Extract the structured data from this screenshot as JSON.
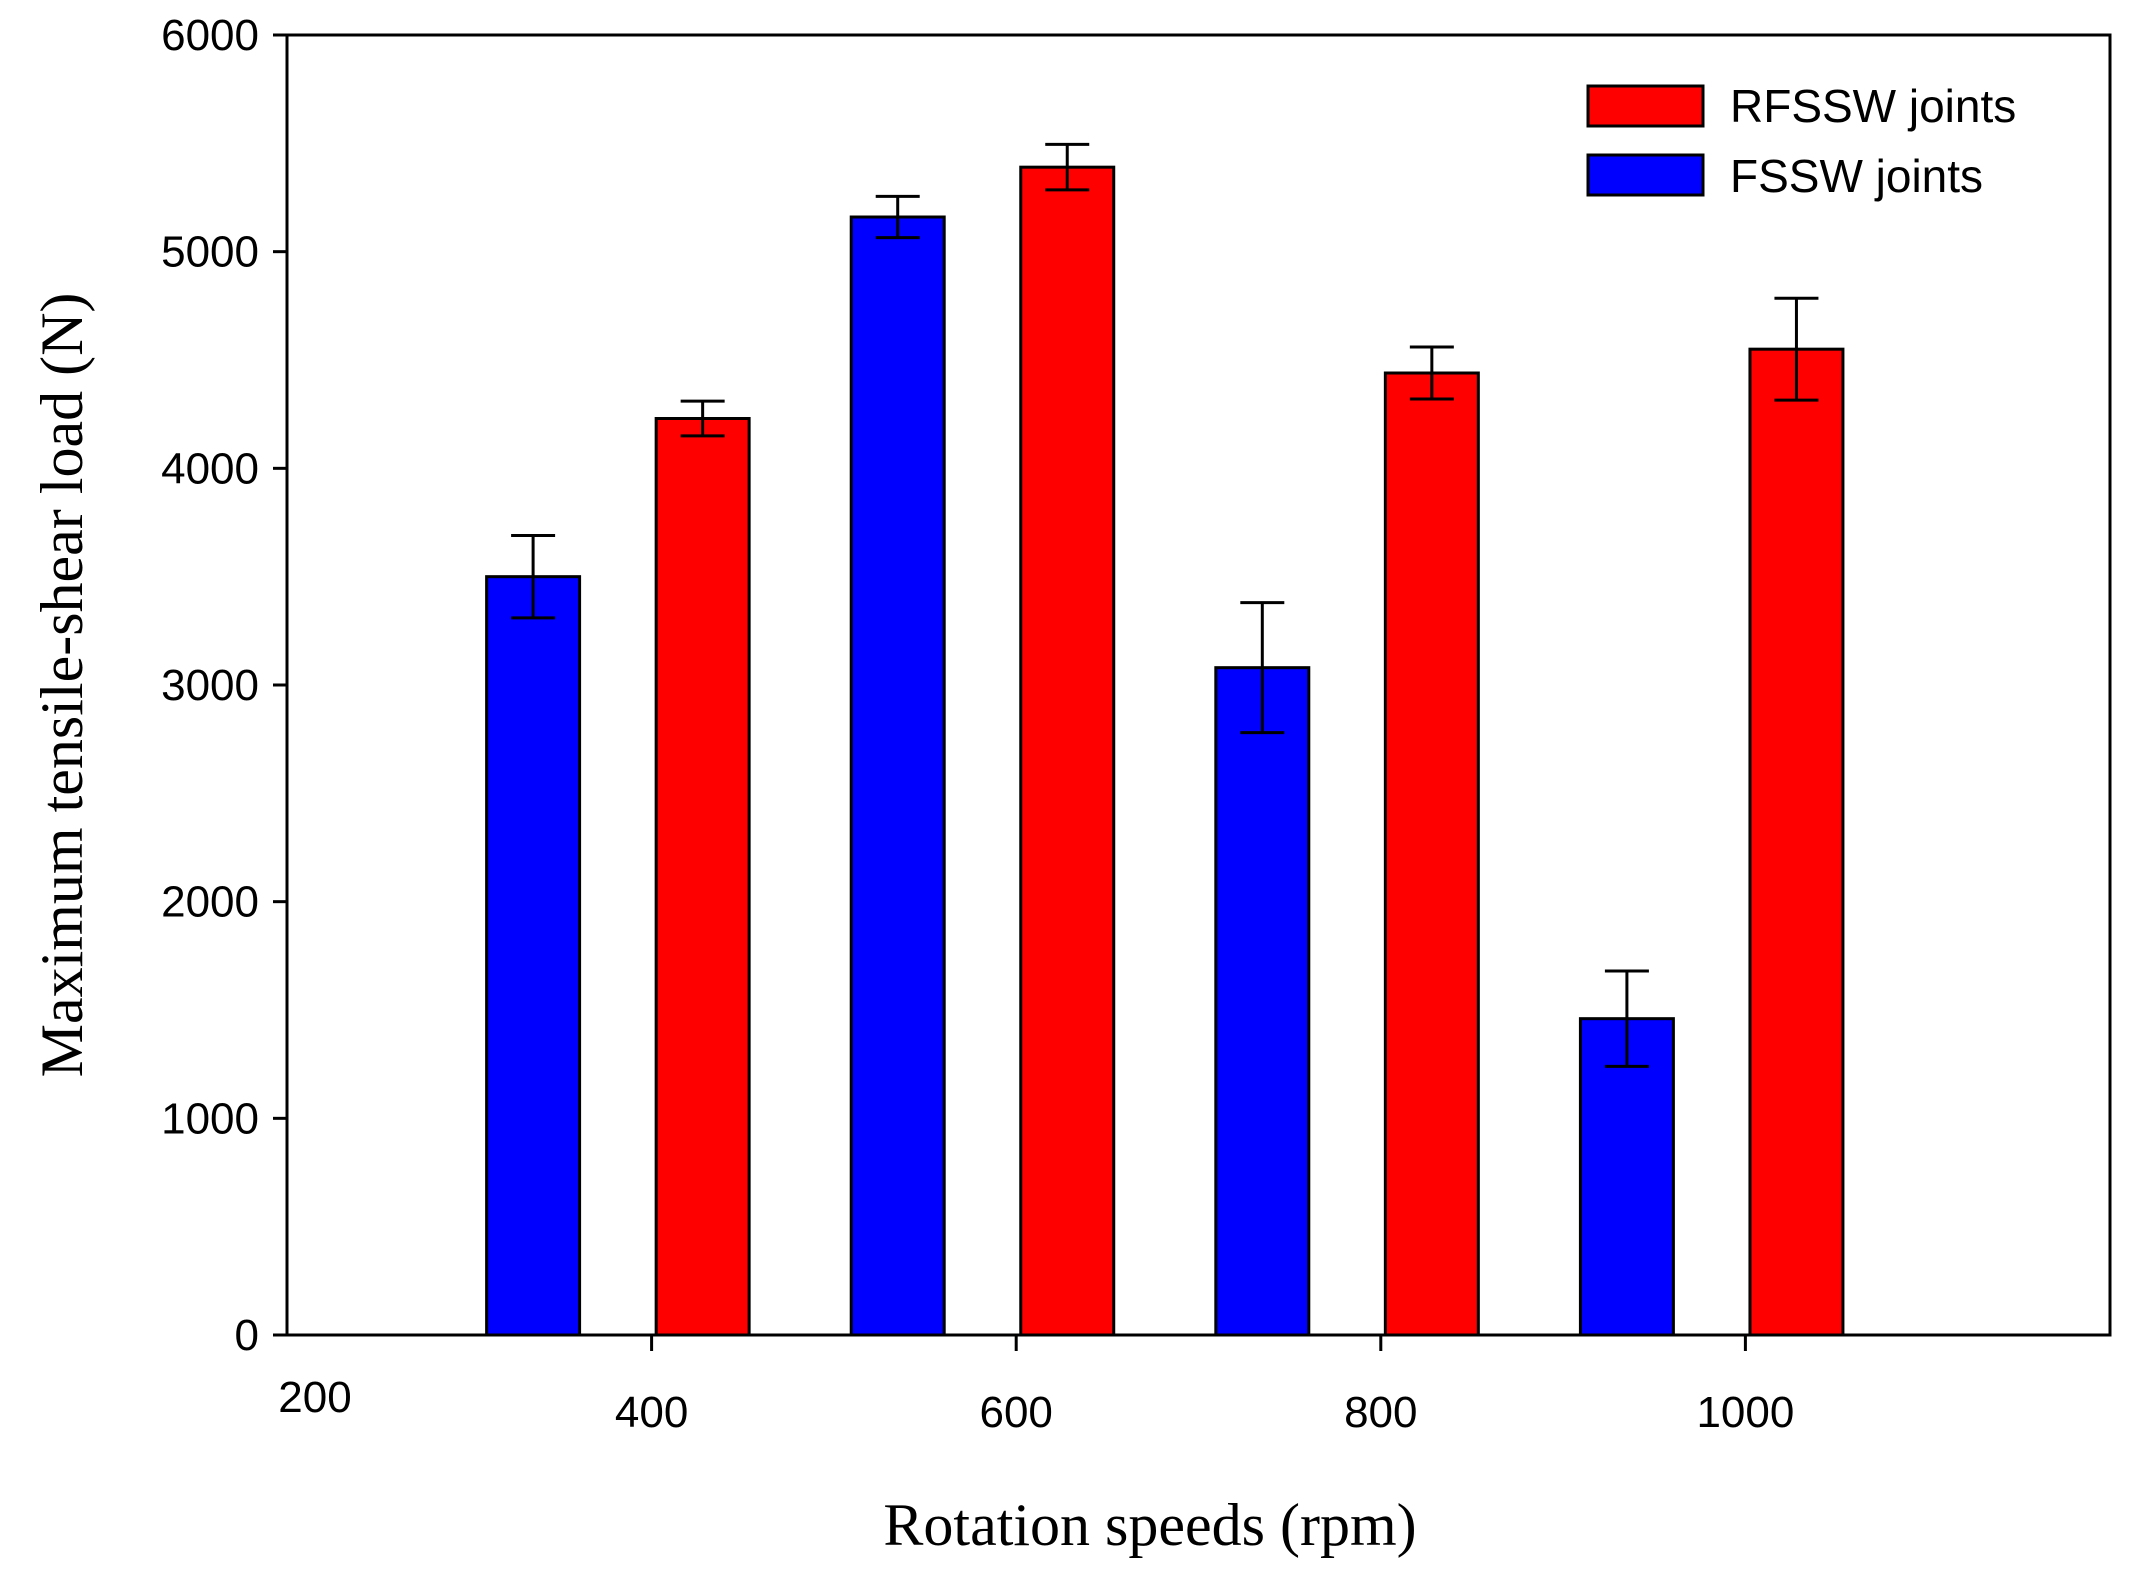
{
  "chart_data": {
    "type": "bar",
    "title": "",
    "xlabel": "Rotation speeds (rpm)",
    "ylabel": "Maximum tensile-shear load (N)",
    "xlim": [
      200,
      1200
    ],
    "ylim": [
      0,
      6000
    ],
    "x_ticks": [
      "200",
      "400",
      "600",
      "800",
      "1000"
    ],
    "y_ticks": [
      "0",
      "1000",
      "2000",
      "3000",
      "4000",
      "5000",
      "6000"
    ],
    "categories": [
      400,
      600,
      800,
      1000
    ],
    "series": [
      {
        "name": "FSSW joints",
        "color": "#0000ff",
        "values": [
          3500,
          5160,
          3080,
          1460
        ],
        "errors": [
          190,
          95,
          300,
          220
        ]
      },
      {
        "name": "RFSSW joints",
        "color": "#ff0000",
        "values": [
          4230,
          5390,
          4440,
          4550
        ],
        "errors": [
          80,
          105,
          120,
          235
        ]
      }
    ],
    "legend": {
      "position": "top-right",
      "entries": [
        "RFSSW joints",
        "FSSW joints"
      ]
    },
    "grid": false
  }
}
